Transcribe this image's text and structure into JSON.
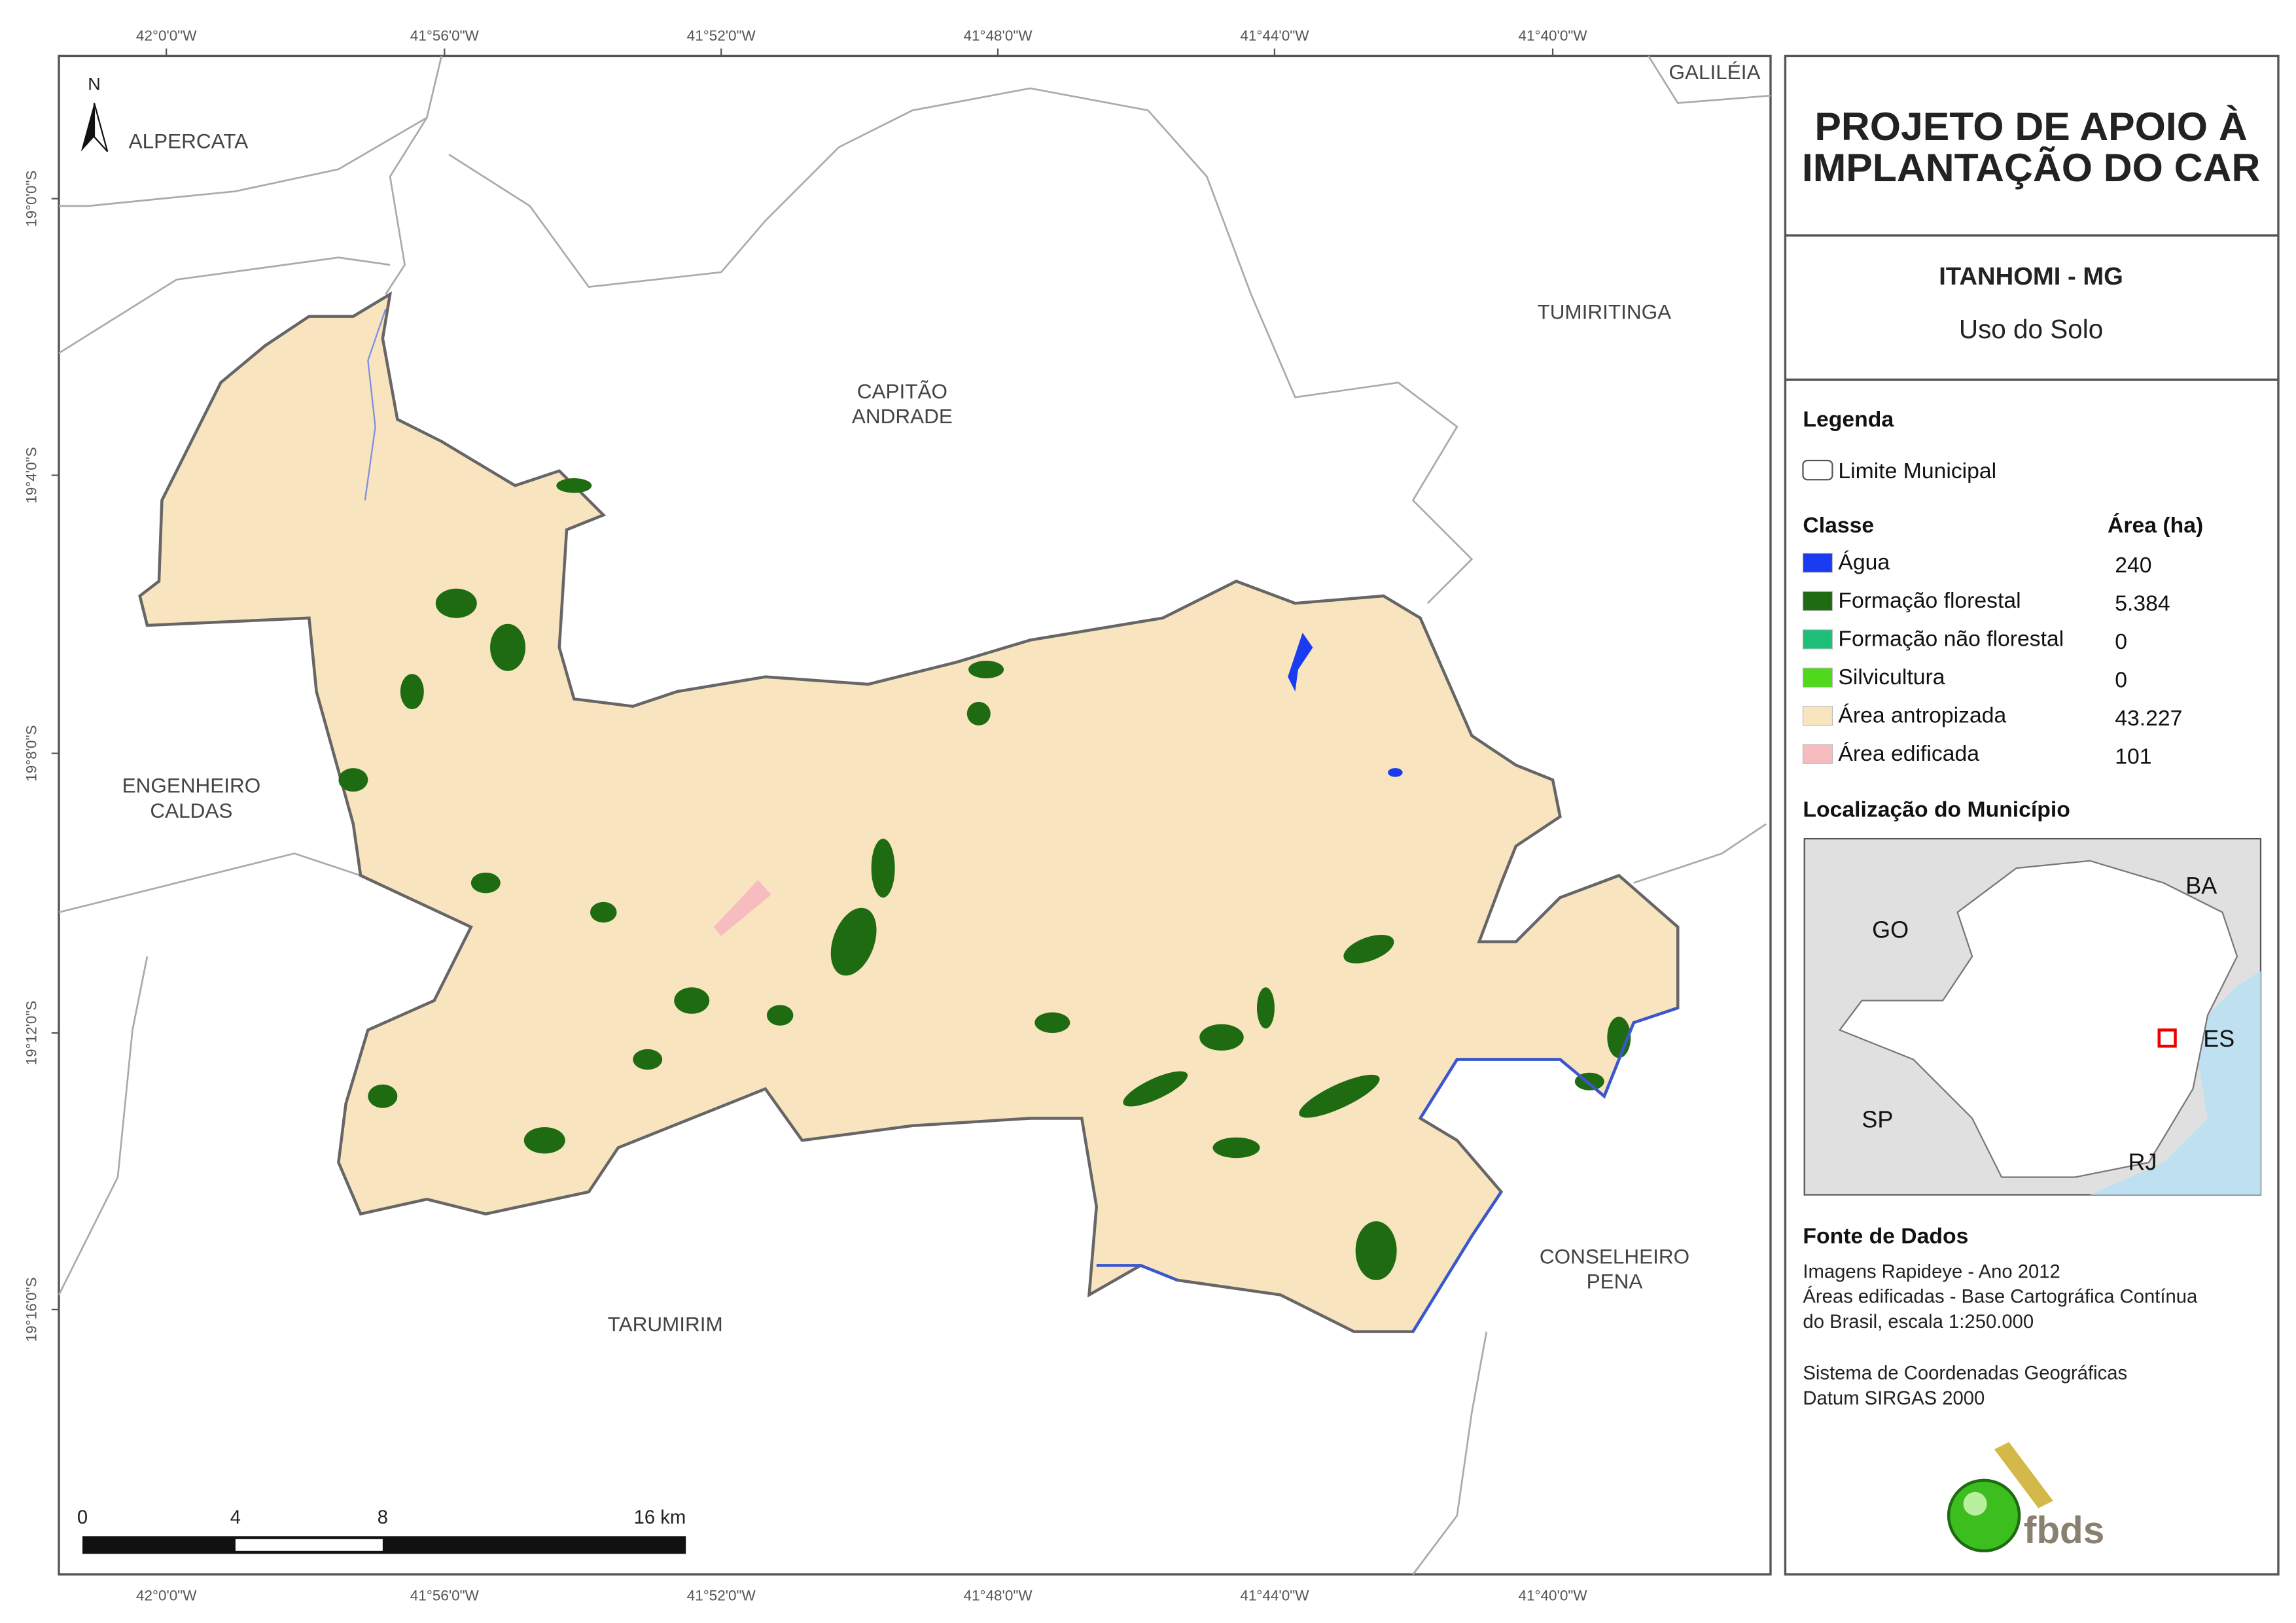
{
  "map": {
    "longitude_labels": [
      "42°0'0\"W",
      "41°56'0\"W",
      "41°52'0\"W",
      "41°48'0\"W",
      "41°44'0\"W",
      "41°40'0\"W"
    ],
    "latitude_labels": [
      "19°0'0\"S",
      "19°4'0\"S",
      "19°8'0\"S",
      "19°12'0\"S",
      "19°16'0\"S"
    ],
    "north": "N",
    "places": [
      {
        "lines": [
          "ALPERCATA"
        ]
      },
      {
        "lines": [
          "GALILÉIA"
        ]
      },
      {
        "lines": [
          "TUMIRITINGA"
        ]
      },
      {
        "lines": [
          "CAPITÃO",
          "ANDRADE"
        ]
      },
      {
        "lines": [
          "ENGENHEIRO",
          "CALDAS"
        ]
      },
      {
        "lines": [
          "CONSELHEIRO",
          "PENA"
        ]
      },
      {
        "lines": [
          "TARUMIRIM"
        ]
      }
    ],
    "scale_bar": [
      "0",
      "4",
      "8",
      "16 km"
    ]
  },
  "panel": {
    "title_lines": [
      "PROJETO DE APOIO À",
      "IMPLANTAÇÃO DO CAR"
    ],
    "municipality": "ITANHOMI - MG",
    "subtitle": "Uso do Solo",
    "legend": {
      "heading": "Legenda",
      "boundary": "Limite Municipal",
      "class_header": "Classe",
      "area_header": "Área (ha)",
      "rows": [
        {
          "label": "Água",
          "area": "240",
          "color": "#1a3cf0"
        },
        {
          "label": "Formação florestal",
          "area": "5.384",
          "color": "#1e6b12"
        },
        {
          "label": "Formação não florestal",
          "area": "0",
          "color": "#1fbf7a"
        },
        {
          "label": "Silvicultura",
          "area": "0",
          "color": "#4fd81c"
        },
        {
          "label": "Área antropizada",
          "area": "43.227",
          "color": "#f9e4c0"
        },
        {
          "label": "Área edificada",
          "area": "101",
          "color": "#f7bcc0"
        }
      ]
    },
    "location": {
      "heading": "Localização do Município",
      "states": [
        "BA",
        "GO",
        "ES",
        "SP",
        "RJ"
      ]
    },
    "sources": {
      "heading": "Fonte de Dados",
      "lines": [
        "Imagens Rapideye - Ano 2012",
        "Áreas edificadas - Base Cartográfica Contínua",
        "do Brasil, escala 1:250.000",
        "Sistema de Coordenadas Geográficas",
        "Datum SIRGAS 2000"
      ]
    },
    "logo": "fbds"
  }
}
